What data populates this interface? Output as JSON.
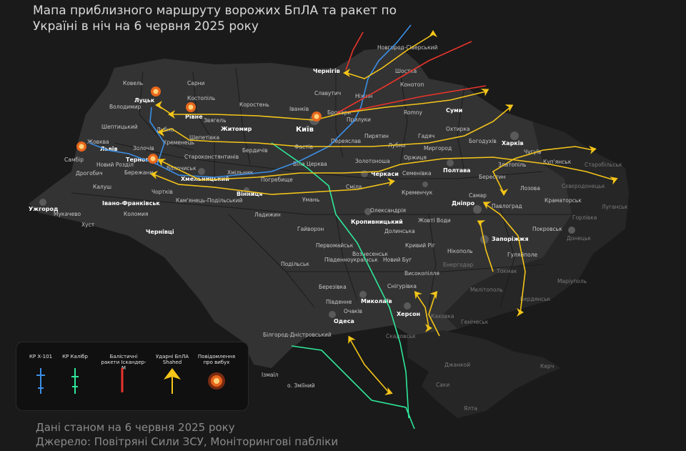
{
  "title": {
    "line1": "Мапа приблизного маршруту ворожих БпЛА та ракет по",
    "line2": "Україні в ніч на 6 червня 2025 року"
  },
  "footer": {
    "line1": "Дані станом на 6 червня 2025 року",
    "line2": "Джерело: Повітряні Сили ЗСУ, Моніторингові пабліки"
  },
  "legend": {
    "kh101": "КР Х-101",
    "kalibr": "КР Калібр",
    "iskander": "Балістичні ракети Іскандер-М",
    "shahed": "Ударні БпЛА Shahed",
    "explosion": "Повідомлення про вибух"
  },
  "colors": {
    "kh101": "#3b8fe6",
    "kalibr": "#2ee89a",
    "iskander": "#e8342b",
    "shahed": "#f5c518",
    "explosion": "#e8661c"
  },
  "cities": {
    "kyiv": "Київ",
    "lutsk": "Луцьк",
    "rivne": "Рівне",
    "lviv": "Львів",
    "ternopil": "Тернопіль",
    "khmelnytskyi": "Хмельницький",
    "vinnytsia": "Вінниця",
    "zhytomyr": "Житомир",
    "chernihiv": "Чернігів",
    "sumy": "Суми",
    "kharkiv": "Харків",
    "poltava": "Полтава",
    "cherkasy": "Черкаси",
    "dnipro": "Дніпро",
    "zaporizhzhia": "Запоріжжя",
    "kropyvnytskyi": "Кропивницький",
    "mykolaiv": "Миколаїв",
    "kherson": "Херсон",
    "odesa": "Одеса",
    "uzhhorod": "Ужгород",
    "ivano_frankivsk": "Івано-Франківськ",
    "chernivtsi": "Чернівці",
    "kovel": "Ковель",
    "sarny": "Сарни",
    "volodymyr": "Володимир",
    "kostopil": "Костопіль",
    "korosten": "Коростень",
    "slavutych": "Славутич",
    "novhorod_siverskyi": "Новгород-Сіверський",
    "shostka": "Шостка",
    "konotop": "Конотоп",
    "nizhyn": "Ніжин",
    "brovary": "Бровари",
    "romny": "Romny",
    "okhtyrka": "Охтирка",
    "bohodukhiv": "Богодухів",
    "hadiach": "Гадяч",
    "myrhorod": "Миргород",
    "lubny": "Лубни",
    "pyriatyn": "Пирятин",
    "pryluky": "Прилуки",
    "pereiaslav": "Переяслав",
    "zolotonosha": "Золотоноша",
    "orzhytsia": "Оржиця",
    "semenivka": "Семенівка",
    "kremenchuk": "Кременчук",
    "chuhuiv": "Чугуїв",
    "zlatopil": "Златопіль",
    "kupiansk": "Куп'янськ",
    "starobilsk": "Старобільськ",
    "siverskodonetsk": "Сєвєродонецьк",
    "luhansk": "Луганськ",
    "berestyn": "Берестин",
    "lozova": "Лозова",
    "kramatorsk": "Краматорськ",
    "horlivka": "Горлівка",
    "donetsk": "Донецьк",
    "pokrovsk": "Покровськ",
    "pavlohrad": "Павлоград",
    "samar": "Самар",
    "nikopol": "Нікополь",
    "huliaipole": "Гуляйполе",
    "tokmak": "Токмак",
    "melitopol": "Мелітополь",
    "mariupol": "Маріуполь",
    "berdiansk": "Бердянськ",
    "enerhodar": "Енергодар",
    "henichesk": "Генічеськ",
    "skadovsk": "Скадовськ",
    "kakhovka": "Каховка",
    "snihurivka": "Снігурівка",
    "ochakiv": "Очаків",
    "pivdenne": "Південне",
    "berezivka": "Березівка",
    "bilhorod": "Білгород-Дністровський",
    "izmail": "Ізмаїл",
    "zmiinyi": "о. Зміїний",
    "dzhankoi": "Джанкой",
    "saky": "Саки",
    "yalta": "Ялта",
    "kerch": "Керч",
    "podilsk": "Подільськ",
    "pervomaisk": "Первомайськ",
    "pivdennoukrainsk": "Південноукраїнськ",
    "voznesensk": "Вознесенськ",
    "novyi_buh": "Новий Буг",
    "vysokopillia": "Високопілля",
    "kryvyi_rih": "Кривий Ріг",
    "zhovti_vody": "Жовті Води",
    "oleksandriia": "Олександрія",
    "dolynska": "Долинська",
    "haivoron": "Гайворон",
    "uman": "Умань",
    "ladyzhyn": "Ладижин",
    "smila": "Сміла",
    "bila_tserkva": "Біла Церква",
    "fastiv": "Фастів",
    "berdychiv": "Бердичів",
    "pohrebyshche": "Погребище",
    "khmilnyk": "Хмільник",
    "starokostiantyniv": "Староконстянтинів",
    "shepetivka": "Шепетівка",
    "zviahel": "Звягель",
    "dubno": "Дубно",
    "kremenets": "Кременець",
    "zolochiv": "Золочів",
    "zhovkva": "Жовква",
    "sheptytskyi": "Шептицький",
    "sambir": "Самбір",
    "drohobych": "Дрогобич",
    "novyi_rozdil": "Новий Розділ",
    "berezhany": "Бережани",
    "kalush": "Калуш",
    "chortkiv": "Чортків",
    "kamianets": "Кам'янець-Подільський",
    "kolomyia": "Коломия",
    "khust": "Хуст",
    "mukachevo": "Мукачево",
    "ivankiv": "Іванків",
    "starokonstantyniv2": "Старокостянтинів",
    "dolynsk": "Волочиськ"
  }
}
